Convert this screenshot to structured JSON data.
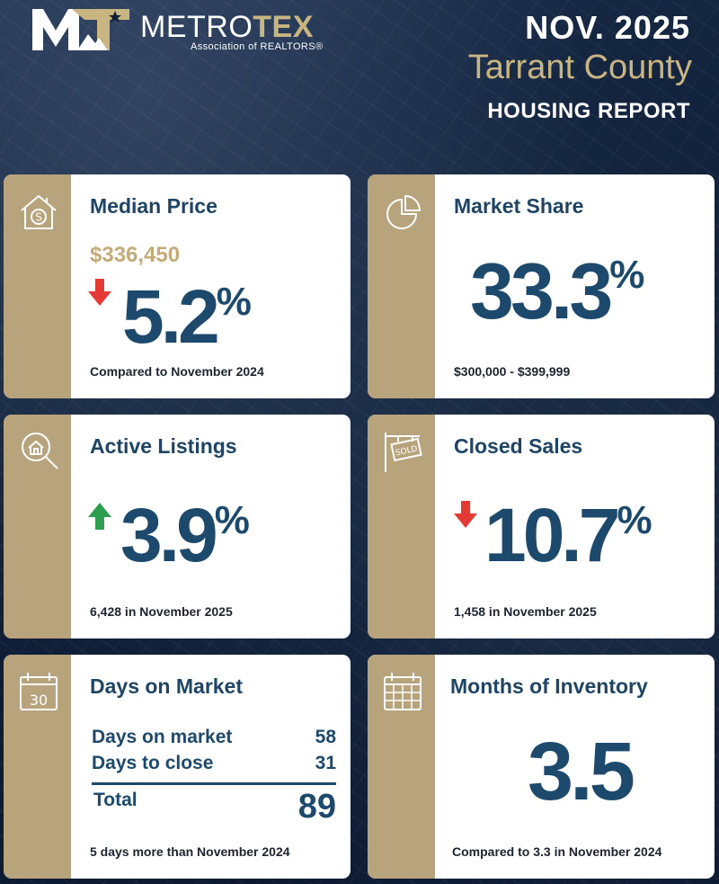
{
  "header": {
    "logo_word_1": "METRO",
    "logo_word_2": "TEX",
    "logo_subtitle": "Association of REALTORS®",
    "date": "NOV. 2025",
    "county": "Tarrant County",
    "title": "HOUSING REPORT"
  },
  "colors": {
    "navy": "#0f1f37",
    "gold": "#b7a47c",
    "gold_text": "#c2ab79",
    "value_blue": "#1d4a6c",
    "arrow_down": "#e53935",
    "arrow_up": "#2e9e4f"
  },
  "cards": {
    "median_price": {
      "icon": "house-dollar-icon",
      "title": "Median Price",
      "price": "$336,450",
      "change_direction": "down",
      "change_value": "5.2",
      "change_unit": "%",
      "footnote": "Compared to November 2024"
    },
    "market_share": {
      "icon": "pie-chart-icon",
      "title": "Market Share",
      "value": "33.3",
      "unit": "%",
      "footnote": "$300,000 - $399,999"
    },
    "active_listings": {
      "icon": "magnifier-house-icon",
      "title": "Active Listings",
      "change_direction": "up",
      "change_value": "3.9",
      "change_unit": "%",
      "footnote": "6,428 in November 2025"
    },
    "closed_sales": {
      "icon": "sold-sign-icon",
      "title": "Closed Sales",
      "change_direction": "down",
      "change_value": "10.7",
      "change_unit": "%",
      "footnote": "1,458 in November 2025"
    },
    "days_on_market": {
      "icon": "calendar-30-icon",
      "icon_text": "30",
      "title": "Days on Market",
      "rows": [
        {
          "label": "Days on market",
          "value": "58"
        },
        {
          "label": "Days to close",
          "value": "31"
        }
      ],
      "total_label": "Total",
      "total_value": "89",
      "footnote": "5 days more than November 2024"
    },
    "months_inventory": {
      "icon": "calendar-grid-icon",
      "title": "Months of Inventory",
      "value": "3.5",
      "footnote": "Compared to 3.3 in November 2024"
    }
  }
}
